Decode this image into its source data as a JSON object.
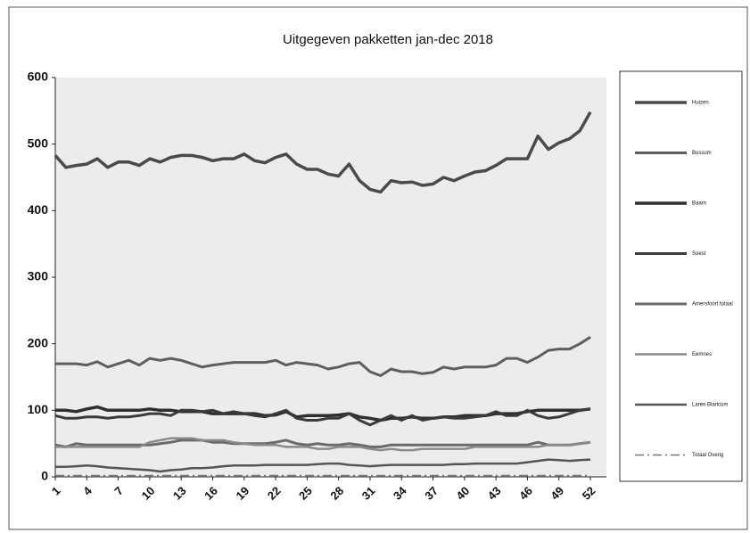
{
  "chart_data": {
    "type": "line",
    "title": "Uitgegeven pakketten jan-dec 2018",
    "x": [
      1,
      2,
      3,
      4,
      5,
      6,
      7,
      8,
      9,
      10,
      11,
      12,
      13,
      14,
      15,
      16,
      17,
      18,
      19,
      20,
      21,
      22,
      23,
      24,
      25,
      26,
      27,
      28,
      29,
      30,
      31,
      32,
      33,
      34,
      35,
      36,
      37,
      38,
      39,
      40,
      41,
      42,
      43,
      44,
      45,
      46,
      47,
      48,
      49,
      50,
      51,
      52
    ],
    "xlim": [
      1,
      52
    ],
    "xticks": [
      1,
      4,
      7,
      10,
      13,
      16,
      19,
      22,
      25,
      28,
      31,
      34,
      37,
      40,
      43,
      46,
      49,
      52
    ],
    "ylim": [
      0,
      600
    ],
    "yticks": [
      0,
      100,
      200,
      300,
      400,
      500,
      600
    ],
    "legend": "right",
    "series": [
      {
        "name": "Huizen",
        "color": "#4a4a4a",
        "values": [
          483,
          465,
          468,
          470,
          478,
          465,
          473,
          473,
          468,
          478,
          473,
          480,
          483,
          483,
          480,
          475,
          478,
          478,
          485,
          475,
          472,
          480,
          485,
          470,
          462,
          462,
          455,
          452,
          470,
          445,
          432,
          428,
          445,
          442,
          443,
          438,
          440,
          450,
          445,
          452,
          458,
          460,
          468,
          478,
          478,
          478,
          512,
          492,
          502,
          508,
          520,
          548
        ]
      },
      {
        "name": "Bussum",
        "color": "#5e5e5e",
        "values": [
          170,
          170,
          170,
          168,
          173,
          165,
          170,
          175,
          168,
          178,
          175,
          178,
          175,
          170,
          165,
          168,
          170,
          172,
          172,
          172,
          172,
          175,
          168,
          172,
          170,
          168,
          162,
          165,
          170,
          172,
          158,
          152,
          162,
          158,
          158,
          155,
          157,
          165,
          162,
          165,
          165,
          165,
          168,
          178,
          178,
          172,
          180,
          190,
          192,
          192,
          200,
          210
        ]
      },
      {
        "name": "Baarn",
        "color": "#2e2e2e",
        "values": [
          100,
          100,
          98,
          102,
          105,
          100,
          100,
          100,
          100,
          102,
          100,
          100,
          98,
          98,
          98,
          95,
          95,
          95,
          95,
          95,
          92,
          93,
          98,
          90,
          92,
          92,
          92,
          93,
          95,
          90,
          88,
          85,
          88,
          88,
          90,
          88,
          88,
          90,
          90,
          92,
          92,
          92,
          95,
          95,
          95,
          98,
          100,
          100,
          100,
          100,
          100,
          102
        ]
      },
      {
        "name": "Soest",
        "color": "#3a3a3a",
        "values": [
          92,
          88,
          88,
          90,
          90,
          88,
          90,
          90,
          92,
          95,
          95,
          92,
          100,
          100,
          98,
          100,
          95,
          98,
          95,
          92,
          90,
          95,
          100,
          88,
          85,
          85,
          88,
          88,
          95,
          85,
          78,
          85,
          92,
          85,
          92,
          85,
          88,
          90,
          88,
          88,
          90,
          92,
          98,
          92,
          92,
          100,
          92,
          88,
          90,
          95,
          100,
          102
        ]
      },
      {
        "name": "Amersfoort totaal",
        "color": "#6a6a6a",
        "values": [
          48,
          45,
          50,
          48,
          48,
          48,
          48,
          48,
          48,
          48,
          50,
          52,
          55,
          55,
          55,
          52,
          52,
          50,
          50,
          50,
          50,
          52,
          55,
          50,
          48,
          50,
          48,
          48,
          50,
          48,
          45,
          45,
          48,
          48,
          48,
          48,
          48,
          48,
          48,
          48,
          48,
          48,
          48,
          48,
          48,
          48,
          52,
          48,
          48,
          48,
          50,
          52
        ]
      },
      {
        "name": "Eemnes",
        "color": "#8a8a8a",
        "values": [
          45,
          45,
          45,
          45,
          45,
          45,
          45,
          45,
          45,
          52,
          55,
          58,
          58,
          58,
          55,
          55,
          55,
          52,
          50,
          48,
          48,
          48,
          45,
          45,
          45,
          42,
          42,
          45,
          45,
          45,
          42,
          40,
          42,
          40,
          40,
          42,
          42,
          42,
          42,
          42,
          45,
          45,
          45,
          45,
          45,
          45,
          45,
          48,
          48,
          48,
          50,
          52
        ]
      },
      {
        "name": "Laren Blaricum",
        "color": "#555555",
        "values": [
          15,
          15,
          16,
          17,
          16,
          14,
          13,
          12,
          11,
          10,
          8,
          10,
          11,
          13,
          13,
          14,
          16,
          17,
          17,
          17,
          18,
          18,
          18,
          18,
          18,
          19,
          20,
          20,
          18,
          17,
          16,
          17,
          18,
          18,
          18,
          18,
          18,
          18,
          19,
          19,
          20,
          20,
          20,
          20,
          20,
          22,
          24,
          26,
          25,
          24,
          25,
          26
        ]
      },
      {
        "name": "Totaal Overig",
        "color": "#777777",
        "values": [
          2,
          2,
          2,
          2,
          2,
          2,
          2,
          2,
          2,
          2,
          2,
          2,
          2,
          2,
          2,
          2,
          2,
          2,
          2,
          2,
          2,
          2,
          2,
          2,
          2,
          2,
          2,
          2,
          2,
          2,
          2,
          2,
          2,
          2,
          2,
          2,
          2,
          2,
          2,
          2,
          2,
          2,
          2,
          2,
          2,
          2,
          2,
          2,
          2,
          2,
          2,
          2
        ]
      }
    ]
  }
}
